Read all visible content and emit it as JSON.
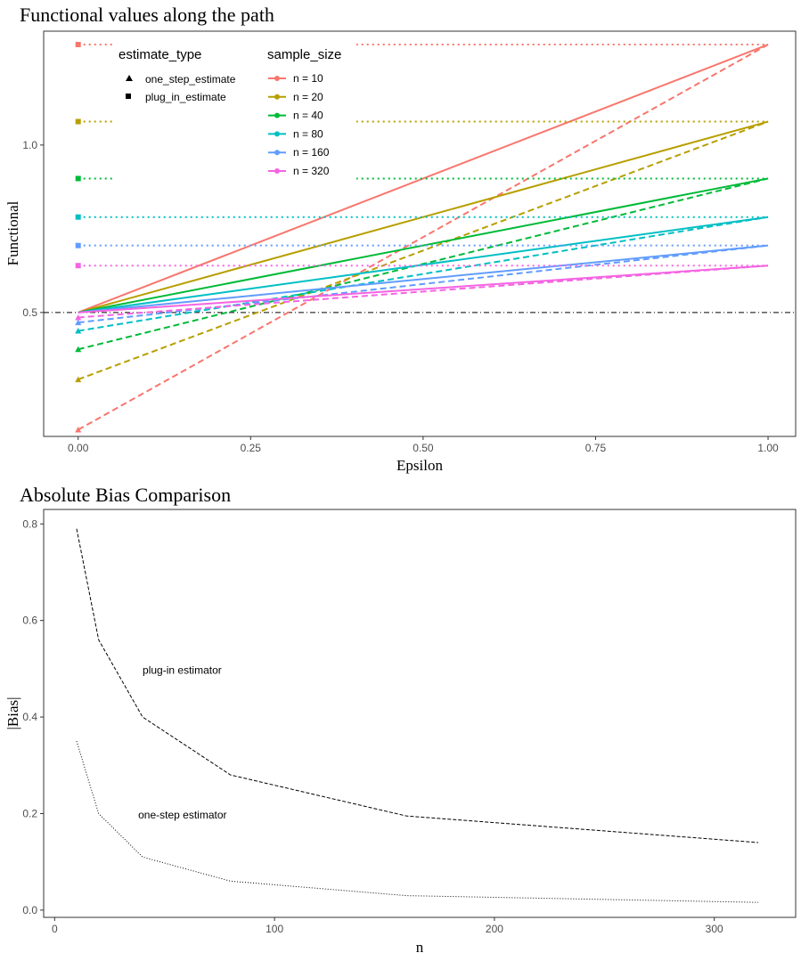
{
  "chart_data": [
    {
      "type": "line",
      "title": "Functional values along the path",
      "xlabel": "Epsilon",
      "ylabel": "Functional",
      "xlim": [
        -0.05,
        1.04
      ],
      "ylim": [
        0.13,
        1.34
      ],
      "x_ticks": [
        0,
        0.25,
        0.5,
        0.75,
        1.0
      ],
      "x_tick_labels": [
        "0.00",
        "0.25",
        "0.50",
        "0.75",
        "1.00"
      ],
      "y_ticks": [
        0.5,
        1.0
      ],
      "y_tick_labels": [
        "0.5",
        "1.0"
      ],
      "grid": false,
      "reference_line": {
        "y": 0.5,
        "style": "dotdash"
      },
      "legend_placement": "top-left, inside plot",
      "legend_estimate_type": {
        "title": "estimate_type",
        "entries": [
          {
            "label": "one_step_estimate",
            "shape": "triangle"
          },
          {
            "label": "plug_in_estimate",
            "shape": "square"
          }
        ]
      },
      "legend_sample_size": {
        "title": "sample_size",
        "entries": [
          "n = 10",
          "n = 20",
          "n = 40",
          "n = 80",
          "n = 160",
          "n = 320"
        ]
      },
      "series": [
        {
          "name": "n = 10",
          "color": "#F8766D",
          "plug_in": 1.3,
          "one_step_start": 0.15
        },
        {
          "name": "n = 20",
          "color": "#B79F00",
          "plug_in": 1.07,
          "one_step_start": 0.3
        },
        {
          "name": "n = 40",
          "color": "#00BA38",
          "plug_in": 0.9,
          "one_step_start": 0.39
        },
        {
          "name": "n = 80",
          "color": "#00BFC4",
          "plug_in": 0.785,
          "one_step_start": 0.445
        },
        {
          "name": "n = 160",
          "color": "#619CFF",
          "plug_in": 0.7,
          "one_step_start": 0.47
        },
        {
          "name": "n = 320",
          "color": "#F564E3",
          "plug_in": 0.64,
          "one_step_start": 0.485
        }
      ],
      "true_value": 0.5
    },
    {
      "type": "line",
      "title": "Absolute Bias Comparison",
      "xlabel": "n",
      "ylabel": "|Bias|",
      "xlim": [
        -5,
        337
      ],
      "ylim": [
        -0.015,
        0.83
      ],
      "x_ticks": [
        0,
        100,
        200,
        300
      ],
      "x_tick_labels": [
        "0",
        "100",
        "200",
        "300"
      ],
      "y_ticks": [
        0,
        0.2,
        0.4,
        0.6,
        0.8
      ],
      "y_tick_labels": [
        "0.0",
        "0.2",
        "0.4",
        "0.6",
        "0.8"
      ],
      "grid": false,
      "x": [
        10,
        20,
        40,
        80,
        160,
        320
      ],
      "series": [
        {
          "name": "plug-in estimator",
          "style": "dashed",
          "values": [
            0.79,
            0.56,
            0.4,
            0.28,
            0.195,
            0.14
          ]
        },
        {
          "name": "one-step estimator",
          "style": "dotted",
          "values": [
            0.35,
            0.2,
            0.11,
            0.06,
            0.03,
            0.016
          ]
        }
      ],
      "annotations": [
        {
          "text": "plug-in estimator",
          "x": 40,
          "y": 0.49
        },
        {
          "text": "one-step estimator",
          "x": 38,
          "y": 0.19
        }
      ]
    }
  ]
}
